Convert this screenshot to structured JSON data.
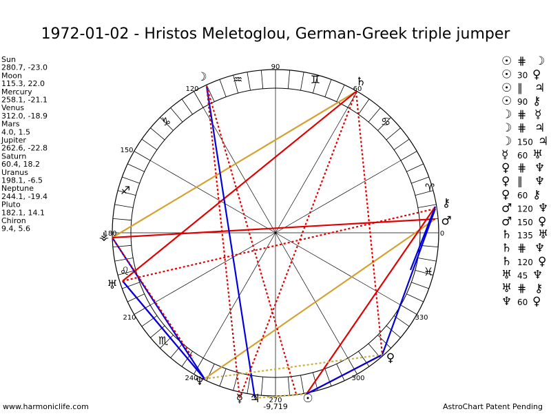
{
  "title": "1972-01-02 - Hristos Meletoglou, German-Greek triple jumper",
  "planets": [
    {
      "name": "Sun",
      "coords": "280.7, -23.0"
    },
    {
      "name": "Moon",
      "coords": "115.3, 22.0"
    },
    {
      "name": "Mercury",
      "coords": "258.1, -21.1"
    },
    {
      "name": "Venus",
      "coords": "312.0, -18.9"
    },
    {
      "name": "Mars",
      "coords": "4.0, 1.5"
    },
    {
      "name": "Jupiter",
      "coords": "262.6, -22.8"
    },
    {
      "name": "Saturn",
      "coords": "60.4, 18.2"
    },
    {
      "name": "Uranus",
      "coords": "198.1, -6.5"
    },
    {
      "name": "Neptune",
      "coords": "244.1, -19.4"
    },
    {
      "name": "Pluto",
      "coords": "182.1, 14.1"
    },
    {
      "name": "Chiron",
      "coords": "9.4, 5.6"
    }
  ],
  "degree_labels": [
    "90",
    "60",
    "120",
    "150",
    "180",
    "210",
    "240",
    "270",
    "300",
    "330",
    "0"
  ],
  "signs": [
    "♒",
    "♊",
    "♑",
    "♋",
    "♐",
    "♈",
    "♌",
    "♏",
    "♓"
  ],
  "wheel_glyphs": [
    "☽",
    "♄",
    "⚷",
    "♂",
    "♀",
    "☉",
    "♃",
    "☿",
    "♆",
    "♅",
    "⚶"
  ],
  "bottom_value": "-9,719",
  "aspects": [
    [
      "☉",
      "⋕",
      "☽"
    ],
    [
      "☉",
      "30",
      "♀"
    ],
    [
      "☉",
      "∥",
      "♃"
    ],
    [
      "☉",
      "90",
      "⚷"
    ],
    [
      "☽",
      "⋕",
      "☿"
    ],
    [
      "☽",
      "⋕",
      "♃"
    ],
    [
      "☽",
      "150",
      "♃"
    ],
    [
      "☿",
      "60",
      "♅"
    ],
    [
      "♀",
      "⋕",
      "♆"
    ],
    [
      "♀",
      "∥",
      "♆"
    ],
    [
      "♀",
      "60",
      "⚷"
    ],
    [
      "♂",
      "120",
      "♆"
    ],
    [
      "♂",
      "150",
      "♀"
    ],
    [
      "♄",
      "135",
      "♅"
    ],
    [
      "♄",
      "⋕",
      "♆"
    ],
    [
      "♄",
      "120",
      "♀"
    ],
    [
      "♅",
      "45",
      "♆"
    ],
    [
      "♅",
      "⋕",
      "⚷"
    ],
    [
      "♆",
      "60",
      "♀"
    ]
  ],
  "footer": {
    "left": "www.harmoniclife.com",
    "right": "AstroChart Patent Pending"
  }
}
